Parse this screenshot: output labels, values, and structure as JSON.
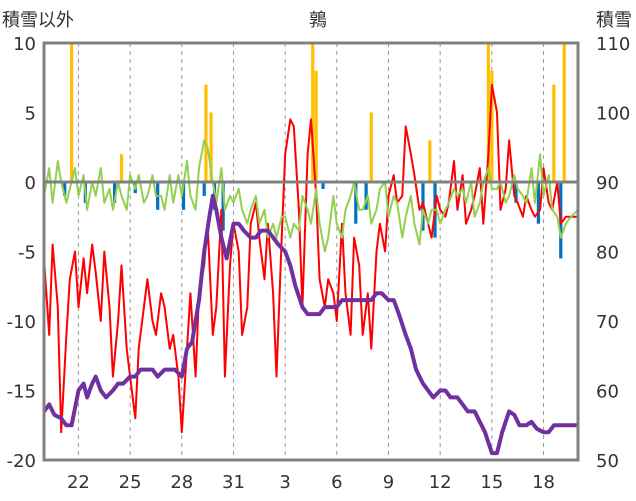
{
  "chart_data": {
    "type": "line",
    "title": "鶉",
    "ylabel_left": "積雪以外",
    "ylabel_right": "積雪",
    "ylim_left": [
      -20,
      10
    ],
    "ylim_right": [
      50,
      110
    ],
    "yticks_left": [
      "10",
      "5",
      "0",
      "-5",
      "-10",
      "-15",
      "-20"
    ],
    "yticks_right": [
      "110",
      "100",
      "90",
      "80",
      "70",
      "60",
      "50"
    ],
    "xlim": [
      20,
      51
    ],
    "xticks": [
      {
        "pos": 22,
        "label": "22"
      },
      {
        "pos": 25,
        "label": "25"
      },
      {
        "pos": 28,
        "label": "28"
      },
      {
        "pos": 31,
        "label": "31"
      },
      {
        "pos": 34,
        "label": "3"
      },
      {
        "pos": 37,
        "label": "6"
      },
      {
        "pos": 40,
        "label": "9"
      },
      {
        "pos": 43,
        "label": "12"
      },
      {
        "pos": 46,
        "label": "15"
      },
      {
        "pos": 49,
        "label": "18"
      }
    ],
    "grid": {
      "vertical_dashed": true,
      "horizontal": false
    },
    "colors": {
      "temperature_red": "#ff0000",
      "secondary_green": "#92d050",
      "precip_yellow": "#ffc000",
      "negative_blue": "#0070c0",
      "snow_purple": "#7030a0",
      "frame": "#808080",
      "zero_line": "#808080"
    },
    "series": [
      {
        "axis": "left",
        "color": "#ff0000",
        "x": [
          20.0,
          20.3,
          20.5,
          20.8,
          21.0,
          21.3,
          21.5,
          21.8,
          22.0,
          22.3,
          22.5,
          22.8,
          23.0,
          23.3,
          23.5,
          23.8,
          24.0,
          24.3,
          24.5,
          24.8,
          25.0,
          25.3,
          25.5,
          25.8,
          26.0,
          26.3,
          26.5,
          26.8,
          27.0,
          27.3,
          27.5,
          27.8,
          28.0,
          28.3,
          28.5,
          28.8,
          29.0,
          29.3,
          29.5,
          29.8,
          30.0,
          30.3,
          30.5,
          30.8,
          31.0,
          31.3,
          31.5,
          31.8,
          32.0,
          32.3,
          32.5,
          32.8,
          33.0,
          33.3,
          33.5,
          33.8,
          34.0,
          34.3,
          34.5,
          34.8,
          35.0,
          35.3,
          35.5,
          35.8,
          36.0,
          36.3,
          36.5,
          36.8,
          37.0,
          37.3,
          37.5,
          37.8,
          38.0,
          38.3,
          38.5,
          38.8,
          39.0,
          39.3,
          39.5,
          39.8,
          40.0,
          40.3,
          40.5,
          40.8,
          41.0,
          41.3,
          41.5,
          41.8,
          42.0,
          42.3,
          42.5,
          42.8,
          43.0,
          43.3,
          43.5,
          43.8,
          44.0,
          44.3,
          44.5,
          44.8,
          45.0,
          45.3,
          45.5,
          45.8,
          46.0,
          46.3,
          46.5,
          46.8,
          47.0,
          47.3,
          47.5,
          47.8,
          48.0,
          48.3,
          48.5,
          48.8,
          49.0,
          49.3,
          49.5,
          49.8,
          50.0,
          50.3,
          50.6,
          51.0
        ],
        "y": [
          -5.5,
          -11,
          -4.5,
          -9,
          -18,
          -11,
          -7,
          -5,
          -9,
          -5.5,
          -8,
          -4.5,
          -6.5,
          -10,
          -5,
          -9,
          -14,
          -10,
          -6,
          -12,
          -14,
          -17,
          -12,
          -9,
          -7,
          -10,
          -11,
          -8,
          -9,
          -12,
          -11,
          -14,
          -18,
          -12,
          -8,
          -14,
          -8,
          -6,
          -3,
          -11,
          -9,
          -2,
          -14,
          -6,
          -3,
          -5,
          -11,
          -9,
          -3,
          -1.5,
          -4,
          -7,
          -3,
          -8,
          -14,
          -4,
          2,
          4.5,
          4,
          -2,
          -9,
          2,
          4.5,
          -1,
          -7,
          -9,
          -7,
          -8,
          -10,
          -3,
          -8,
          -11,
          -4,
          -6,
          -11,
          -8,
          -12,
          -5,
          -3,
          -5,
          -1,
          0.5,
          -1.5,
          -1,
          4,
          2,
          0.5,
          -2,
          -1.5,
          -3,
          -4,
          -1,
          -2,
          -2.5,
          -1.5,
          1.5,
          -2,
          0.5,
          -3,
          -2,
          -1,
          1,
          -3,
          2,
          7,
          5,
          -2,
          -0.5,
          3,
          -1,
          -1.5,
          -2.5,
          -1,
          -2,
          -2.5,
          -2,
          1,
          -1.5,
          -2,
          0,
          -3,
          -2.5,
          -2.5,
          -2.5
        ]
      },
      {
        "axis": "left",
        "color": "#92d050",
        "x": [
          20.0,
          20.3,
          20.5,
          20.8,
          21.0,
          21.3,
          21.5,
          21.8,
          22.0,
          22.3,
          22.5,
          22.8,
          23.0,
          23.3,
          23.5,
          23.8,
          24.0,
          24.3,
          24.5,
          24.8,
          25.0,
          25.3,
          25.5,
          25.8,
          26.0,
          26.3,
          26.5,
          26.8,
          27.0,
          27.3,
          27.5,
          27.8,
          28.0,
          28.3,
          28.5,
          28.8,
          29.0,
          29.3,
          29.5,
          29.8,
          30.0,
          30.3,
          30.5,
          30.8,
          31.0,
          31.3,
          31.5,
          31.8,
          32.0,
          32.3,
          32.5,
          32.8,
          33.0,
          33.3,
          33.5,
          33.8,
          34.0,
          34.3,
          34.5,
          34.8,
          35.0,
          35.3,
          35.5,
          35.8,
          36.0,
          36.3,
          36.5,
          36.8,
          37.0,
          37.3,
          37.5,
          37.8,
          38.0,
          38.3,
          38.5,
          38.8,
          39.0,
          39.3,
          39.5,
          39.8,
          40.0,
          40.3,
          40.5,
          40.8,
          41.0,
          41.3,
          41.5,
          41.8,
          42.0,
          42.3,
          42.5,
          42.8,
          43.0,
          43.3,
          43.5,
          43.8,
          44.0,
          44.3,
          44.5,
          44.8,
          45.0,
          45.3,
          45.5,
          45.8,
          46.0,
          46.3,
          46.5,
          46.8,
          47.0,
          47.3,
          47.5,
          47.8,
          48.0,
          48.3,
          48.5,
          48.8,
          49.0,
          49.3,
          49.5,
          49.8,
          50.0,
          50.3,
          50.6,
          51.0
        ],
        "y": [
          -1,
          1,
          -1.5,
          1.5,
          0,
          -1.5,
          -0.5,
          1,
          -1,
          0.5,
          -2,
          0,
          -1,
          1,
          -1.5,
          -0.5,
          -2,
          0,
          -1,
          -2,
          0.5,
          -0.5,
          0.5,
          -1.5,
          -1,
          0.5,
          -1,
          -1,
          -2,
          0.5,
          -1.5,
          0.5,
          -1,
          1.5,
          -1,
          -2,
          1,
          3,
          2.5,
          0,
          -1.5,
          1,
          -2,
          -1,
          -1.5,
          -0.5,
          -2,
          -3,
          -2,
          -1,
          -3,
          -2,
          -4,
          -3,
          -4,
          -2.5,
          -2.5,
          -4,
          -3,
          -3.5,
          -1,
          -2,
          -3,
          -0.5,
          -3,
          -5,
          -4,
          -1,
          -3,
          -4,
          -2,
          -1,
          0,
          -2,
          -2,
          -1,
          -3,
          -2,
          -0.5,
          0,
          -2.5,
          -1,
          -1.5,
          -4,
          -2.5,
          -1,
          -3,
          -4.5,
          -2,
          -3,
          -2,
          -2,
          -3,
          -2,
          -1.5,
          -0.5,
          -1,
          -0.5,
          -1.5,
          0,
          -2.5,
          -1.5,
          0,
          1,
          -0.5,
          -0.5,
          0,
          -1.5,
          -1,
          0.5,
          -0.5,
          -1,
          -1.5,
          1,
          -1.5,
          2,
          -1,
          0.5,
          -2,
          -2.5,
          -4,
          -3,
          -2.5,
          -2
        ]
      },
      {
        "axis": "right",
        "color": "#7030a0",
        "x": [
          20.0,
          20.3,
          20.6,
          21.0,
          21.3,
          21.6,
          22.0,
          22.3,
          22.5,
          22.8,
          23.0,
          23.3,
          23.6,
          24.0,
          24.3,
          24.6,
          25.0,
          25.3,
          25.6,
          26.0,
          26.3,
          26.6,
          27.0,
          27.3,
          27.6,
          28.0,
          28.3,
          28.6,
          29.0,
          29.3,
          29.6,
          29.8,
          30.0,
          30.3,
          30.6,
          31.0,
          31.3,
          31.6,
          32.0,
          32.3,
          32.6,
          33.0,
          33.3,
          33.6,
          34.0,
          34.3,
          34.6,
          35.0,
          35.3,
          35.6,
          36.0,
          36.3,
          36.6,
          37.0,
          37.3,
          37.6,
          38.0,
          38.3,
          38.6,
          39.0,
          39.3,
          39.6,
          40.0,
          40.3,
          40.6,
          41.0,
          41.3,
          41.6,
          42.0,
          42.3,
          42.6,
          43.0,
          43.3,
          43.6,
          44.0,
          44.3,
          44.6,
          45.0,
          45.3,
          45.6,
          46.0,
          46.3,
          46.6,
          47.0,
          47.3,
          47.6,
          48.0,
          48.3,
          48.6,
          49.0,
          49.3,
          49.6,
          50.0,
          50.3,
          50.6,
          51.0
        ],
        "y": [
          57,
          58,
          56.5,
          56,
          55,
          55,
          60,
          61,
          59,
          61,
          62,
          60,
          59,
          60,
          61,
          61,
          62,
          62,
          63,
          63,
          63,
          62,
          63,
          63,
          63,
          62,
          66,
          67,
          73,
          80,
          85,
          88,
          86,
          82,
          79,
          84,
          84,
          83,
          82,
          82,
          83,
          83,
          82,
          81,
          80,
          78,
          75,
          72,
          71,
          71,
          71,
          72,
          72,
          72,
          73,
          73,
          73,
          73,
          73,
          73,
          74,
          74,
          73,
          73,
          71,
          68,
          66,
          63,
          61,
          60,
          59,
          60,
          60,
          59,
          59,
          58,
          57,
          57,
          55.5,
          54,
          51,
          51,
          54,
          57,
          56.5,
          55,
          55,
          55.5,
          54.5,
          54,
          54,
          55,
          55,
          55,
          55,
          55
        ]
      }
    ],
    "bars": [
      {
        "axis": "left",
        "color": "#ffc000",
        "x": [
          21.6,
          24.5,
          29.4,
          29.7,
          35.6,
          35.8,
          39.0,
          42.4,
          45.8,
          46.0,
          49.6,
          50.2
        ],
        "y": [
          10,
          2,
          7,
          5,
          10,
          8,
          5,
          3,
          10,
          8,
          7,
          10
        ]
      },
      {
        "axis": "left",
        "color": "#0070c0",
        "x": [
          21.2,
          22.4,
          24.1,
          25.3,
          26.6,
          28.1,
          29.3,
          29.9,
          30.4,
          36.2,
          38.1,
          38.7,
          42.0,
          42.7,
          47.4,
          48.7,
          50.0
        ],
        "y": [
          -1,
          -1.5,
          -1.5,
          -0.8,
          -2,
          -2,
          -1,
          -2,
          -3.5,
          -0.5,
          -3,
          -2,
          -3.5,
          -4,
          -1.5,
          -3,
          -5.5
        ]
      }
    ]
  }
}
